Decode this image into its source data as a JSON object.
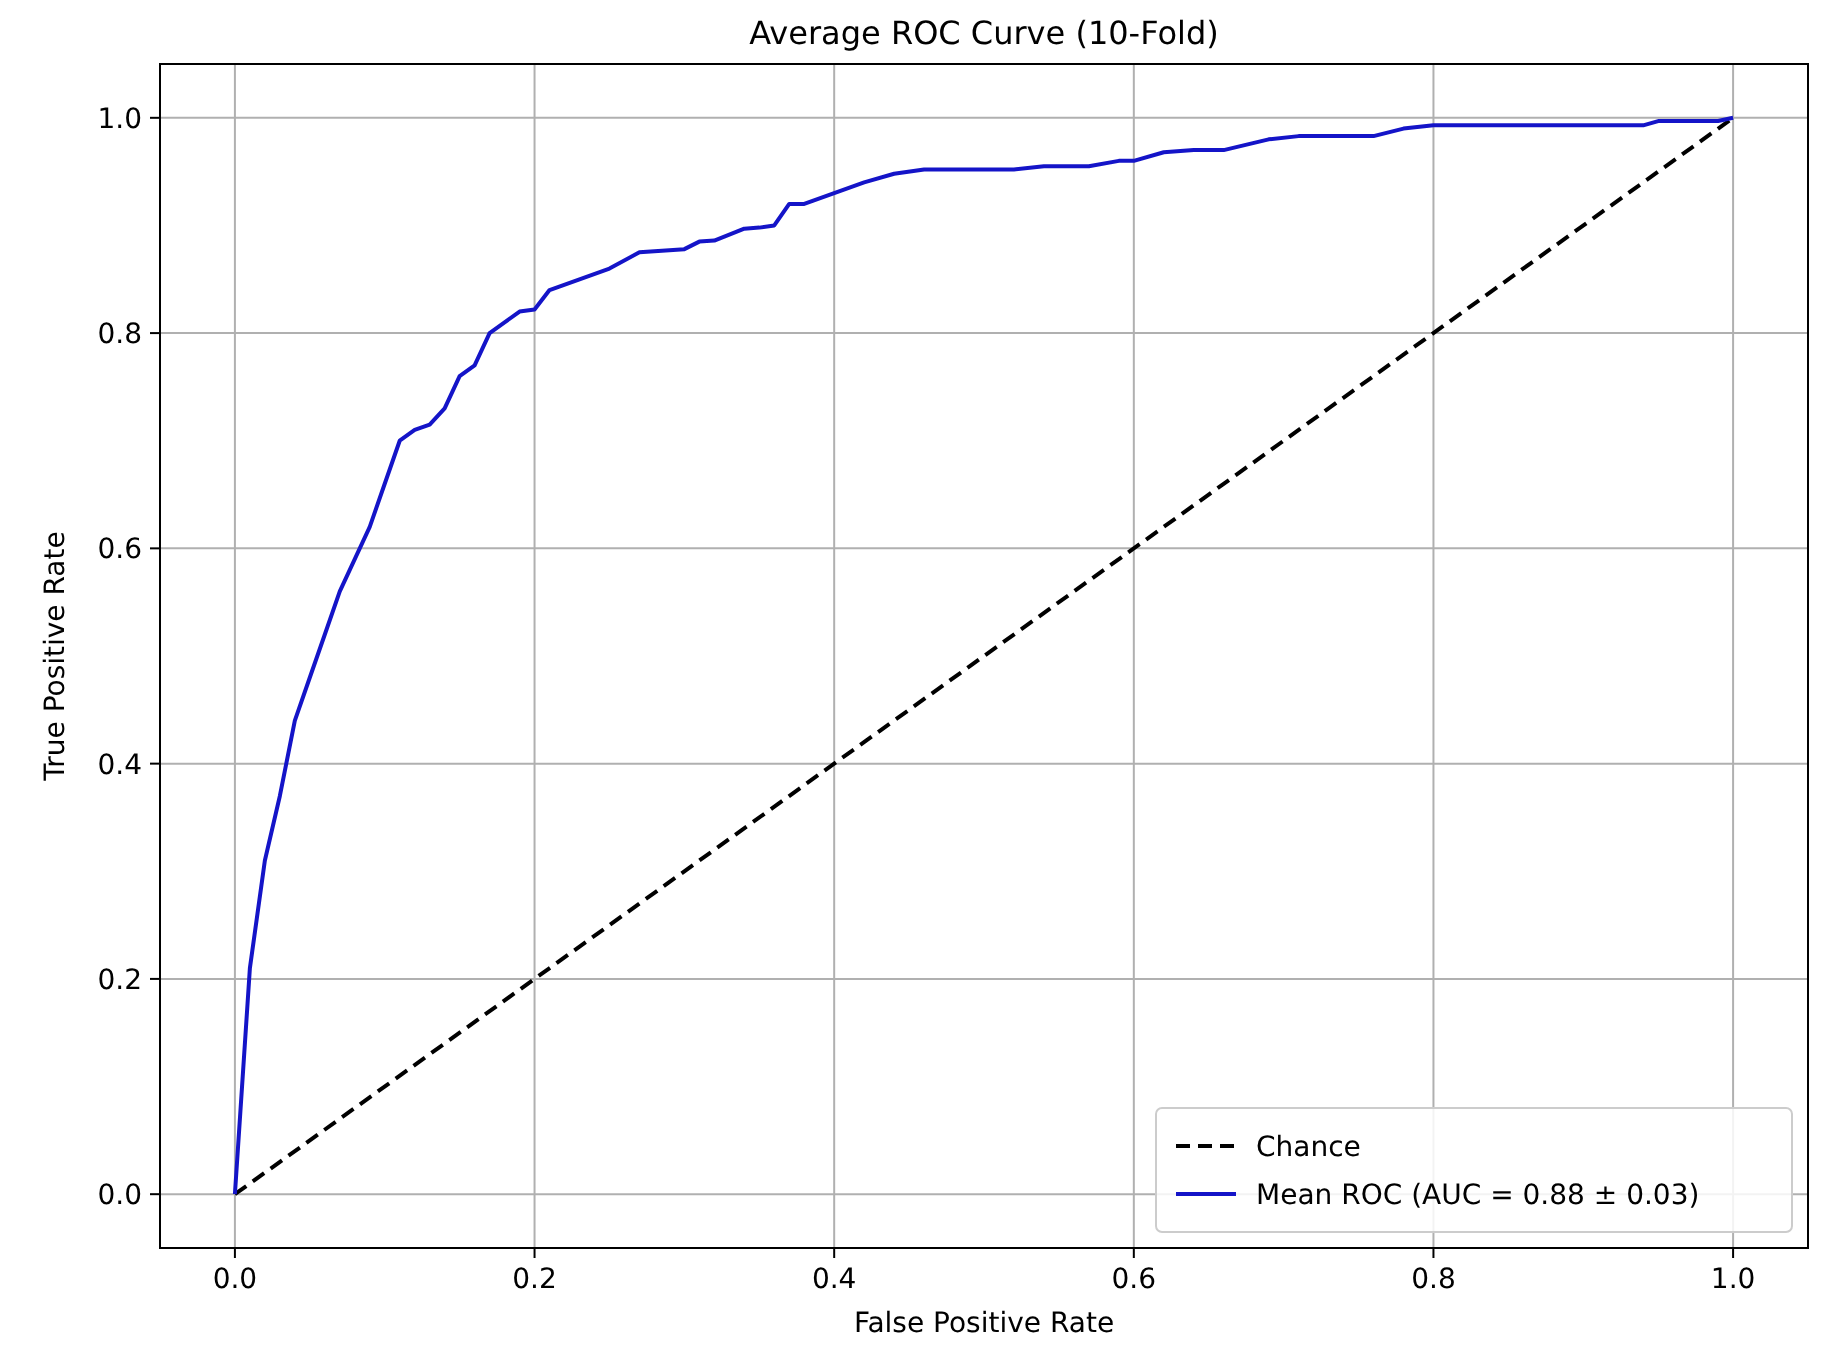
{
  "chart_data": {
    "type": "line",
    "title": "Average ROC Curve (10-Fold)",
    "xlabel": "False Positive Rate",
    "ylabel": "True Positive Rate",
    "xlim": [
      -0.05,
      1.05
    ],
    "ylim": [
      -0.05,
      1.05
    ],
    "xticks": [
      {
        "value": 0,
        "label": "0.0"
      },
      {
        "value": 0.2,
        "label": "0.2"
      },
      {
        "value": 0.4,
        "label": "0.4"
      },
      {
        "value": 0.6,
        "label": "0.6"
      },
      {
        "value": 0.8,
        "label": "0.8"
      },
      {
        "value": 1,
        "label": "1.0"
      }
    ],
    "yticks": [
      {
        "value": 0,
        "label": "0.0"
      },
      {
        "value": 0.2,
        "label": "0.2"
      },
      {
        "value": 0.4,
        "label": "0.4"
      },
      {
        "value": 0.6,
        "label": "0.6"
      },
      {
        "value": 0.8,
        "label": "0.8"
      },
      {
        "value": 1,
        "label": "1.0"
      }
    ],
    "grid": true,
    "legend": "bottom right",
    "series": [
      {
        "name": "Chance",
        "color": "#000000",
        "line_style": "dashed",
        "x": [
          0,
          1
        ],
        "values": [
          0,
          1
        ]
      },
      {
        "name": "Mean ROC (AUC = 0.88 ± 0.03)",
        "color": "#1414c8",
        "line_style": "solid",
        "x": [
          0,
          0.01,
          0.02,
          0.03,
          0.04,
          0.05,
          0.06,
          0.07,
          0.08,
          0.09,
          0.1,
          0.11,
          0.12,
          0.13,
          0.14,
          0.15,
          0.16,
          0.17,
          0.18,
          0.19,
          0.2,
          0.21,
          0.23,
          0.25,
          0.27,
          0.3,
          0.31,
          0.32,
          0.34,
          0.35,
          0.36,
          0.37,
          0.38,
          0.4,
          0.42,
          0.44,
          0.46,
          0.52,
          0.54,
          0.57,
          0.59,
          0.6,
          0.62,
          0.64,
          0.66,
          0.69,
          0.71,
          0.76,
          0.78,
          0.8,
          0.94,
          0.95,
          0.99,
          1
        ],
        "values": [
          0,
          0.21,
          0.31,
          0.37,
          0.44,
          0.48,
          0.52,
          0.56,
          0.59,
          0.62,
          0.66,
          0.7,
          0.71,
          0.715,
          0.73,
          0.76,
          0.77,
          0.8,
          0.81,
          0.82,
          0.822,
          0.84,
          0.85,
          0.86,
          0.875,
          0.878,
          0.885,
          0.886,
          0.897,
          0.898,
          0.9,
          0.92,
          0.92,
          0.93,
          0.94,
          0.948,
          0.952,
          0.952,
          0.955,
          0.955,
          0.96,
          0.96,
          0.968,
          0.97,
          0.97,
          0.98,
          0.983,
          0.983,
          0.99,
          0.993,
          0.993,
          0.997,
          0.997,
          1
        ]
      }
    ]
  }
}
